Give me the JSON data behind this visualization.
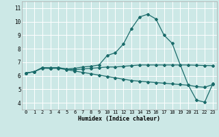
{
  "xlabel": "Humidex (Indice chaleur)",
  "bg_color": "#cce8e6",
  "grid_color": "#ffffff",
  "line_color": "#1a6b6a",
  "xlim": [
    -0.5,
    23.5
  ],
  "ylim": [
    3.5,
    11.5
  ],
  "xticks": [
    0,
    1,
    2,
    3,
    4,
    5,
    6,
    7,
    8,
    9,
    10,
    11,
    12,
    13,
    14,
    15,
    16,
    17,
    18,
    19,
    20,
    21,
    22,
    23
  ],
  "yticks": [
    4,
    5,
    6,
    7,
    8,
    9,
    10,
    11
  ],
  "line1_x": [
    0,
    1,
    2,
    3,
    4,
    5,
    6,
    7,
    8,
    9,
    10,
    11,
    12,
    13,
    14,
    15,
    16,
    17,
    18,
    19,
    20,
    21,
    22,
    23
  ],
  "line1_y": [
    6.2,
    6.3,
    6.6,
    6.6,
    6.6,
    6.5,
    6.55,
    6.65,
    6.7,
    6.8,
    7.5,
    7.7,
    8.35,
    9.5,
    10.35,
    10.55,
    10.2,
    9.0,
    8.4,
    6.8,
    5.3,
    4.2,
    4.05,
    5.4
  ],
  "line2_x": [
    0,
    1,
    2,
    3,
    4,
    5,
    6,
    7,
    8,
    9,
    10,
    11,
    12,
    13,
    14,
    15,
    16,
    17,
    18,
    19,
    20,
    21,
    22,
    23
  ],
  "line2_y": [
    6.2,
    6.3,
    6.55,
    6.55,
    6.6,
    6.5,
    6.45,
    6.5,
    6.55,
    6.6,
    6.65,
    6.65,
    6.7,
    6.75,
    6.8,
    6.8,
    6.8,
    6.8,
    6.8,
    6.8,
    6.8,
    6.78,
    6.76,
    6.75
  ],
  "line3_x": [
    0,
    1,
    2,
    3,
    4,
    5,
    6,
    7,
    8,
    9,
    10,
    11,
    12,
    13,
    14,
    15,
    16,
    17,
    18,
    19,
    20,
    21,
    22,
    23
  ],
  "line3_y": [
    6.2,
    6.3,
    6.6,
    6.55,
    6.55,
    6.45,
    6.35,
    6.25,
    6.15,
    6.05,
    5.95,
    5.85,
    5.75,
    5.65,
    5.6,
    5.55,
    5.5,
    5.45,
    5.4,
    5.35,
    5.3,
    5.2,
    5.15,
    5.35
  ],
  "marker": "D",
  "markersize": 2.0,
  "linewidth": 0.9
}
